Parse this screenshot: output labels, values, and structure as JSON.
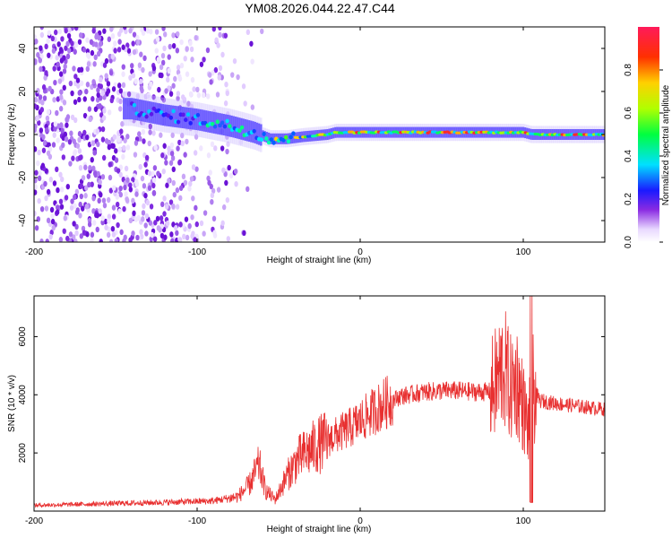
{
  "title": "YM08.2026.044.22.47.C44",
  "chart_data": [
    {
      "type": "heatmap",
      "xlabel": "Height of straight line (km)",
      "ylabel": "Frequency (Hz)",
      "xlim": [
        -200,
        150
      ],
      "ylim": [
        -50,
        50
      ],
      "xticks": [
        -200,
        -100,
        0,
        100
      ],
      "yticks": [
        40,
        20,
        0,
        -20,
        -40
      ],
      "colorbar": {
        "label": "Normalized spectral amplitude",
        "range": [
          0,
          1
        ],
        "ticks": [
          "0.0",
          "0.2",
          "0.4",
          "0.6",
          "0.8"
        ]
      },
      "ridge": {
        "x": [
          -140,
          -120,
          -100,
          -80,
          -65,
          -55,
          -45,
          -35,
          -20,
          -15,
          0,
          20,
          40,
          60,
          80,
          90,
          100,
          105,
          120,
          150
        ],
        "freq": [
          12,
          9,
          7,
          4,
          1,
          -2,
          -2,
          -1,
          0,
          1,
          1,
          1,
          1,
          1,
          1,
          1,
          1,
          0,
          0,
          0
        ]
      }
    },
    {
      "type": "line",
      "xlabel": "Height of straight line (km)",
      "ylabel": "SNR (10 * v/v)",
      "xlim": [
        -200,
        150
      ],
      "ylim": [
        0,
        7400
      ],
      "xticks": [
        -200,
        -100,
        0,
        100
      ],
      "yticks": [
        2000,
        4000,
        6000
      ],
      "color": "#e83030",
      "envelope": {
        "x": [
          -200,
          -160,
          -120,
          -90,
          -75,
          -68,
          -62,
          -58,
          -52,
          -45,
          -38,
          -28,
          -15,
          -5,
          5,
          15,
          25,
          40,
          55,
          70,
          80,
          85,
          88,
          92,
          96,
          100,
          103,
          106,
          110,
          120,
          135,
          150
        ],
        "y": [
          200,
          250,
          300,
          350,
          500,
          900,
          1600,
          700,
          400,
          1200,
          1800,
          2200,
          2600,
          2900,
          3300,
          3700,
          3950,
          4100,
          4150,
          4100,
          4100,
          4600,
          5000,
          4200,
          4500,
          3600,
          2800,
          4200,
          3800,
          3700,
          3600,
          3500
        ]
      }
    }
  ]
}
